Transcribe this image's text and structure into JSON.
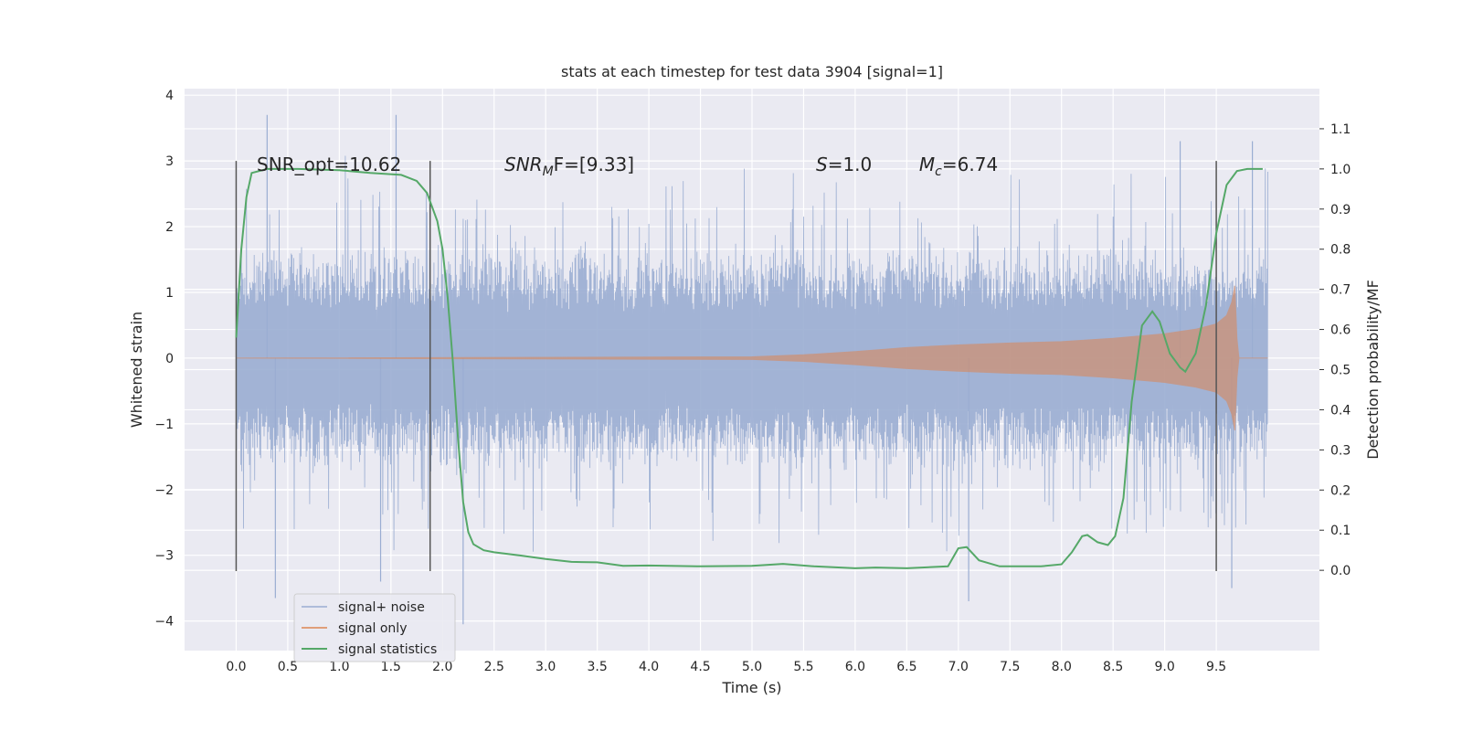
{
  "chart_data": {
    "type": "line",
    "title": "stats at each timestep for test data 3904 [signal=1]",
    "xlabel": "Time (s)",
    "ylabel": "Whitened strain",
    "y2label": "Detection probability/MF",
    "xlim": [
      -0.5,
      10.5
    ],
    "ylim": [
      -4.45,
      4.1
    ],
    "y2lim": [
      -0.2,
      1.2
    ],
    "xticks": [
      "0.0",
      "0.5",
      "1.0",
      "1.5",
      "2.0",
      "2.5",
      "3.0",
      "3.5",
      "4.0",
      "4.5",
      "5.0",
      "5.5",
      "6.0",
      "6.5",
      "7.0",
      "7.5",
      "8.0",
      "8.5",
      "9.0",
      "9.5"
    ],
    "yticks": [
      "−4",
      "−3",
      "−2",
      "−1",
      "0",
      "1",
      "2",
      "3",
      "4"
    ],
    "y2ticks": [
      "0.0",
      "0.1",
      "0.2",
      "0.3",
      "0.4",
      "0.5",
      "0.6",
      "0.7",
      "0.8",
      "0.9",
      "1.0",
      "1.1"
    ],
    "grid": true,
    "legend_position": "bottom-left",
    "colors": {
      "background": "#eaeaf2",
      "grid": "#ffffff",
      "noise": "#9aadd2",
      "signal": "#dd8452",
      "stat": "#55a868",
      "vline": "#555555"
    },
    "annotations": {
      "snr_opt": "SNR_opt=10.62",
      "snr_mf_sym": "SNR",
      "snr_mf_sub": "M",
      "snr_mf_rest": "F=[9.33]",
      "s_sym": "S",
      "s_rest": "=1.0",
      "mc_sym": "M",
      "mc_sub": "c",
      "mc_rest": "=6.74"
    },
    "vertical_lines_x": [
      0.0,
      1.88,
      9.5
    ],
    "series": [
      {
        "name": "signal+ noise",
        "type": "noise",
        "x_range": [
          0.0,
          10.0
        ],
        "envelope": [
          1.8,
          2.3
        ],
        "peaks": [
          [
            0.3,
            3.7
          ],
          [
            1.55,
            3.7
          ],
          [
            0.38,
            -3.65
          ],
          [
            2.2,
            -4.05
          ],
          [
            7.1,
            -3.7
          ],
          [
            9.65,
            -3.5
          ],
          [
            1.4,
            -3.4
          ],
          [
            9.15,
            3.3
          ],
          [
            9.85,
            3.3
          ]
        ]
      },
      {
        "name": "signal only",
        "type": "chirp",
        "points": [
          [
            0.0,
            0.0
          ],
          [
            5.0,
            0.02
          ],
          [
            5.5,
            0.05
          ],
          [
            6.0,
            0.1
          ],
          [
            6.5,
            0.16
          ],
          [
            7.0,
            0.2
          ],
          [
            7.5,
            0.23
          ],
          [
            8.0,
            0.25
          ],
          [
            8.5,
            0.3
          ],
          [
            9.0,
            0.37
          ],
          [
            9.3,
            0.44
          ],
          [
            9.5,
            0.52
          ],
          [
            9.6,
            0.65
          ],
          [
            9.65,
            0.85
          ],
          [
            9.68,
            1.1
          ],
          [
            9.7,
            0.3
          ],
          [
            9.72,
            0.0
          ],
          [
            10.0,
            0.0
          ]
        ]
      },
      {
        "name": "signal statistics",
        "type": "line",
        "axis": "right",
        "points": [
          [
            0.0,
            0.58
          ],
          [
            0.05,
            0.8
          ],
          [
            0.1,
            0.93
          ],
          [
            0.15,
            0.99
          ],
          [
            0.3,
            1.0
          ],
          [
            0.6,
            1.0
          ],
          [
            1.0,
            0.997
          ],
          [
            1.3,
            0.99
          ],
          [
            1.6,
            0.985
          ],
          [
            1.75,
            0.97
          ],
          [
            1.85,
            0.94
          ],
          [
            1.95,
            0.87
          ],
          [
            2.0,
            0.8
          ],
          [
            2.05,
            0.68
          ],
          [
            2.1,
            0.52
          ],
          [
            2.15,
            0.33
          ],
          [
            2.2,
            0.17
          ],
          [
            2.25,
            0.095
          ],
          [
            2.3,
            0.065
          ],
          [
            2.4,
            0.05
          ],
          [
            2.5,
            0.045
          ],
          [
            2.75,
            0.037
          ],
          [
            3.0,
            0.028
          ],
          [
            3.25,
            0.021
          ],
          [
            3.5,
            0.02
          ],
          [
            3.75,
            0.011
          ],
          [
            4.0,
            0.012
          ],
          [
            4.5,
            0.01
          ],
          [
            5.0,
            0.011
          ],
          [
            5.3,
            0.016
          ],
          [
            5.6,
            0.01
          ],
          [
            6.0,
            0.005
          ],
          [
            6.2,
            0.007
          ],
          [
            6.5,
            0.005
          ],
          [
            6.9,
            0.01
          ],
          [
            7.0,
            0.055
          ],
          [
            7.08,
            0.058
          ],
          [
            7.2,
            0.025
          ],
          [
            7.4,
            0.01
          ],
          [
            7.8,
            0.01
          ],
          [
            8.0,
            0.015
          ],
          [
            8.1,
            0.045
          ],
          [
            8.2,
            0.085
          ],
          [
            8.25,
            0.088
          ],
          [
            8.35,
            0.07
          ],
          [
            8.45,
            0.063
          ],
          [
            8.52,
            0.085
          ],
          [
            8.6,
            0.18
          ],
          [
            8.68,
            0.42
          ],
          [
            8.78,
            0.61
          ],
          [
            8.88,
            0.645
          ],
          [
            8.95,
            0.62
          ],
          [
            9.05,
            0.54
          ],
          [
            9.15,
            0.505
          ],
          [
            9.2,
            0.495
          ],
          [
            9.3,
            0.54
          ],
          [
            9.4,
            0.66
          ],
          [
            9.5,
            0.84
          ],
          [
            9.6,
            0.96
          ],
          [
            9.7,
            0.995
          ],
          [
            9.8,
            1.0
          ],
          [
            9.95,
            1.0
          ]
        ]
      }
    ]
  }
}
